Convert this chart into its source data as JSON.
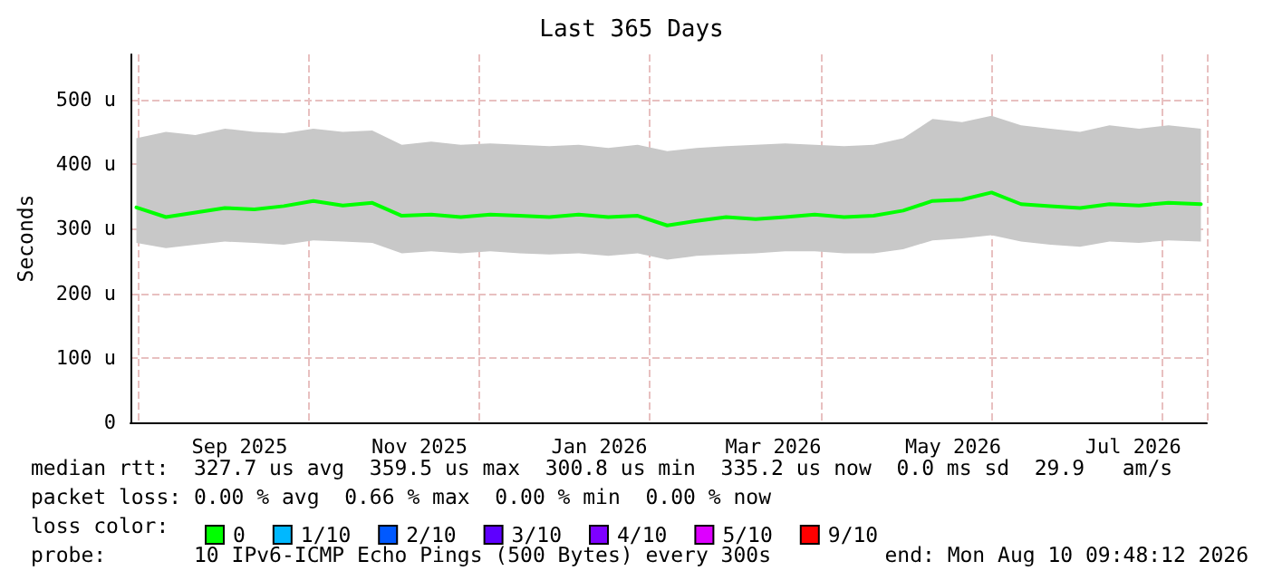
{
  "chart_data": {
    "type": "line",
    "title": "Last 365 Days",
    "ylabel": "Seconds",
    "legend_title": "loss color:",
    "legend": "bottom",
    "grid": true,
    "marker": "none",
    "line_style": "solid",
    "xlim": [
      "2025-08-10",
      "2026-08-10"
    ],
    "xticks": [
      {
        "value": "2025-09-16",
        "label": "Sep 2025"
      },
      {
        "value": "2025-11-16",
        "label": "Nov 2025"
      },
      {
        "value": "2026-01-16",
        "label": "Jan 2026"
      },
      {
        "value": "2026-03-16",
        "label": "Mar 2026"
      },
      {
        "value": "2026-05-16",
        "label": "May 2026"
      },
      {
        "value": "2026-07-16",
        "label": "Jul 2026"
      }
    ],
    "ylim": [
      0,
      570
    ],
    "yticks": [
      0,
      {
        "value": 100,
        "label": "100 u"
      },
      {
        "value": 200,
        "label": "200 u"
      },
      {
        "value": 300,
        "label": "300 u"
      },
      {
        "value": 400,
        "label": "400 u"
      },
      {
        "value": 500,
        "label": "500 u"
      }
    ],
    "x": [
      "2025-08-12",
      "2025-08-22",
      "2025-09-01",
      "2025-09-11",
      "2025-09-21",
      "2025-10-01",
      "2025-10-11",
      "2025-10-21",
      "2025-10-31",
      "2025-11-10",
      "2025-11-20",
      "2025-11-30",
      "2025-12-10",
      "2025-12-20",
      "2025-12-30",
      "2026-01-09",
      "2026-01-19",
      "2026-01-29",
      "2026-02-08",
      "2026-02-18",
      "2026-02-28",
      "2026-03-10",
      "2026-03-20",
      "2026-03-30",
      "2026-04-09",
      "2026-04-19",
      "2026-04-29",
      "2026-05-09",
      "2026-05-19",
      "2026-05-29",
      "2026-06-08",
      "2026-06-18",
      "2026-06-28",
      "2026-07-08",
      "2026-07-18",
      "2026-07-28",
      "2026-08-08"
    ],
    "series": [
      {
        "name": "0",
        "color": "#00ff00",
        "values": [
          333,
          318,
          325,
          332,
          330,
          335,
          343,
          336,
          340,
          320,
          322,
          318,
          322,
          320,
          318,
          322,
          318,
          320,
          305,
          312,
          318,
          315,
          318,
          322,
          318,
          320,
          328,
          343,
          345,
          356,
          338,
          335,
          332,
          338,
          336,
          340,
          338
        ],
        "lower": [
          278,
          270,
          275,
          280,
          278,
          275,
          282,
          280,
          278,
          262,
          265,
          262,
          265,
          262,
          260,
          262,
          258,
          262,
          252,
          258,
          260,
          262,
          265,
          265,
          262,
          262,
          268,
          282,
          285,
          290,
          280,
          275,
          272,
          280,
          278,
          282,
          280
        ],
        "upper": [
          440,
          450,
          445,
          455,
          450,
          448,
          455,
          450,
          452,
          430,
          435,
          430,
          432,
          430,
          428,
          430,
          425,
          430,
          420,
          425,
          428,
          430,
          432,
          430,
          428,
          430,
          440,
          470,
          465,
          475,
          460,
          455,
          450,
          460,
          455,
          460,
          455
        ]
      },
      {
        "name": "1/10",
        "color": "#00b8ff",
        "values": [
          null,
          null,
          null,
          null,
          null,
          null,
          null,
          null,
          null,
          null,
          null,
          null,
          null,
          null,
          null,
          null,
          null,
          null,
          null,
          null,
          null,
          null,
          null,
          null,
          null,
          null,
          null,
          null,
          null,
          null,
          null,
          null,
          null,
          null,
          null,
          null,
          null
        ]
      },
      {
        "name": "2/10",
        "color": "#0059ff",
        "values": [
          null,
          null,
          null,
          null,
          null,
          null,
          null,
          null,
          null,
          null,
          null,
          null,
          null,
          null,
          null,
          null,
          null,
          null,
          null,
          null,
          null,
          null,
          null,
          null,
          null,
          null,
          null,
          null,
          null,
          null,
          null,
          null,
          null,
          null,
          null,
          null,
          null
        ]
      },
      {
        "name": "3/10",
        "color": "#5e00ff",
        "values": [
          null,
          null,
          null,
          null,
          null,
          null,
          null,
          null,
          null,
          null,
          null,
          null,
          null,
          null,
          null,
          null,
          null,
          null,
          null,
          null,
          null,
          null,
          null,
          null,
          null,
          null,
          null,
          null,
          null,
          null,
          null,
          null,
          null,
          null,
          null,
          null,
          null
        ]
      },
      {
        "name": "4/10",
        "color": "#7e00ff",
        "values": [
          null,
          null,
          null,
          null,
          null,
          null,
          null,
          null,
          null,
          null,
          null,
          null,
          null,
          null,
          null,
          null,
          null,
          null,
          null,
          null,
          null,
          null,
          null,
          null,
          null,
          null,
          null,
          null,
          null,
          null,
          null,
          null,
          null,
          null,
          null,
          null,
          null
        ]
      },
      {
        "name": "5/10",
        "color": "#dd00ff",
        "values": [
          null,
          null,
          null,
          null,
          null,
          null,
          null,
          null,
          null,
          null,
          null,
          null,
          null,
          null,
          null,
          null,
          null,
          null,
          null,
          null,
          null,
          null,
          null,
          null,
          null,
          null,
          null,
          null,
          null,
          null,
          null,
          null,
          null,
          null,
          null,
          null,
          null
        ]
      },
      {
        "name": "9/10",
        "color": "#ff0000",
        "values": [
          null,
          null,
          null,
          null,
          null,
          null,
          null,
          null,
          null,
          null,
          null,
          null,
          null,
          null,
          null,
          null,
          null,
          null,
          null,
          null,
          null,
          null,
          null,
          null,
          null,
          null,
          null,
          null,
          null,
          null,
          null,
          null,
          null,
          null,
          null,
          null,
          null
        ]
      }
    ],
    "annotations": [
      "median rtt:  327.7 us avg  359.5 us max  300.8 us min  335.2 us now  0.0 ms sd  29.9   am/s",
      "packet loss: 0.00 % avg  0.66 % max  0.00 % min  0.00 % now",
      "probe:       10 IPv6-ICMP Echo Pings (500 Bytes) every 300s",
      "end: Mon Aug 10 09:48:12 2026"
    ]
  }
}
